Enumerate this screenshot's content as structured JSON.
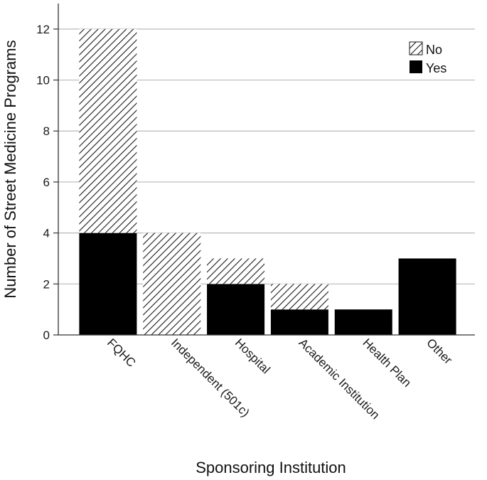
{
  "chart_data": {
    "type": "bar",
    "stacked": true,
    "categories": [
      "FQHC",
      "Independent (501c)",
      "Hospital",
      "Academic Institution",
      "Health Plan",
      "Other"
    ],
    "series": [
      {
        "name": "Yes",
        "values": [
          4,
          0,
          2,
          1,
          1,
          3
        ],
        "fill": "solid",
        "color": "#000000"
      },
      {
        "name": "No",
        "values": [
          8,
          4,
          1,
          1,
          0,
          0
        ],
        "fill": "diagonal-hatch",
        "color": "#000000"
      }
    ],
    "xlabel": "Sponsoring Institution",
    "ylabel": "Number of Street Medicine Programs",
    "ylim": [
      0,
      13
    ],
    "yticks": [
      0,
      2,
      4,
      6,
      8,
      10,
      12
    ],
    "grid": "horizontal",
    "legend": {
      "placement": "top-right",
      "order": [
        "No",
        "Yes"
      ]
    }
  }
}
